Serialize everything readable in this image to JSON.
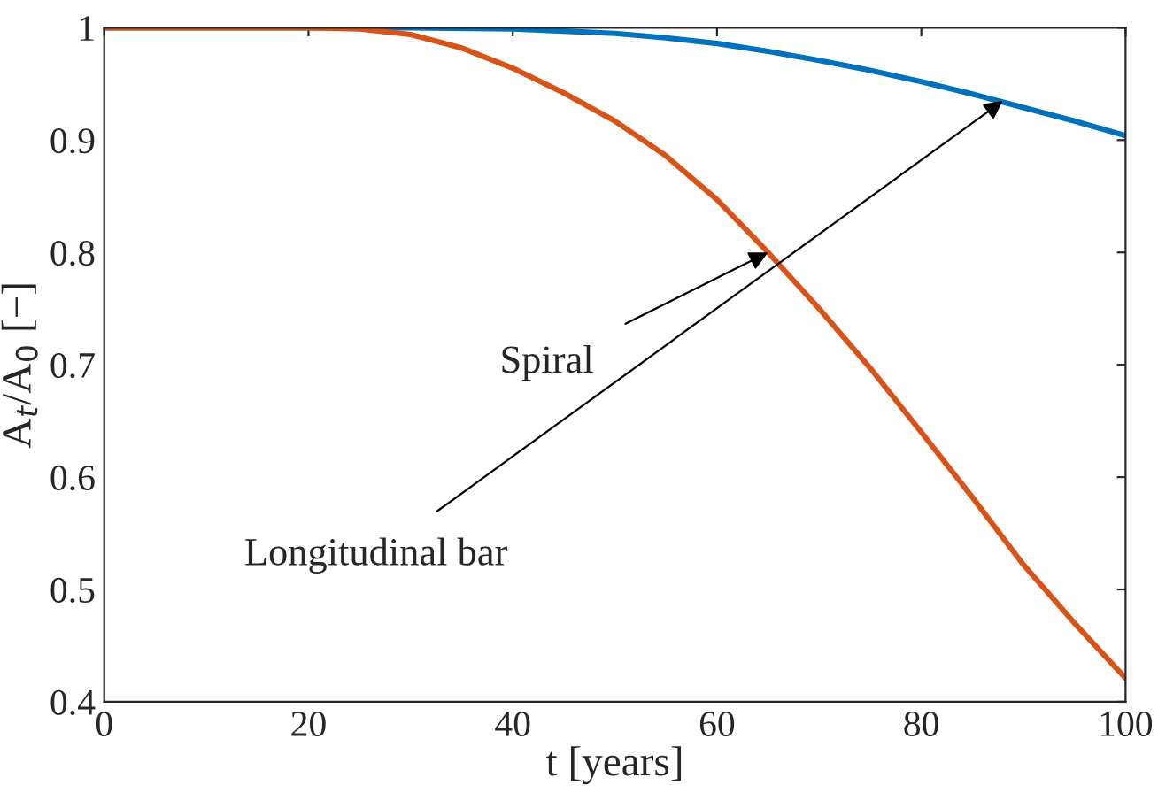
{
  "chart_data": {
    "type": "line",
    "xlabel": "t [years]",
    "ylabel": "A$_{t}$/A$_{0}$ [−]",
    "xlim": [
      0,
      100
    ],
    "ylim": [
      0.4,
      1
    ],
    "xticks": [
      0,
      20,
      40,
      60,
      80,
      100
    ],
    "yticks": [
      0.4,
      0.5,
      0.6,
      0.7,
      0.8,
      0.9,
      1
    ],
    "series": [
      {
        "color": "#0072bd",
        "x": [
          0,
          20,
          30,
          40,
          45,
          50,
          55,
          60,
          65,
          70,
          75,
          80,
          85,
          90,
          95,
          100
        ],
        "values": [
          1,
          1,
          1,
          0.999,
          0.997,
          0.995,
          0.991,
          0.986,
          0.979,
          0.971,
          0.962,
          0.952,
          0.941,
          0.929,
          0.917,
          0.904
        ]
      },
      {
        "color": "#d95319",
        "x": [
          0,
          20,
          25,
          30,
          35,
          40,
          45,
          50,
          55,
          60,
          65,
          70,
          75,
          80,
          85,
          90,
          95,
          100
        ],
        "values": [
          1,
          1,
          0.999,
          0.994,
          0.982,
          0.964,
          0.942,
          0.917,
          0.886,
          0.847,
          0.8,
          0.75,
          0.697,
          0.64,
          0.582,
          0.522,
          0.47,
          0.421
        ]
      }
    ],
    "annotations": [
      {
        "text": "Spiral",
        "x": 65,
        "y": 0.8
      },
      {
        "text": "Longitudinal bar",
        "x": 88,
        "y": 0.935
      }
    ]
  }
}
